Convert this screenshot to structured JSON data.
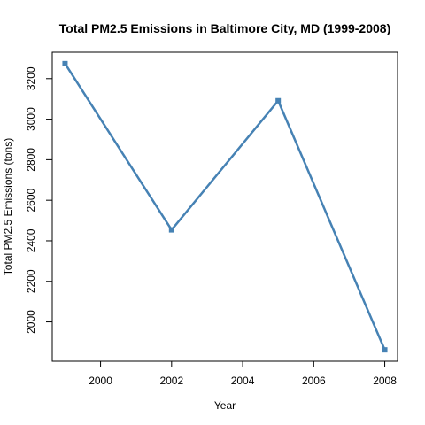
{
  "chart_data": {
    "type": "line",
    "title": "Total PM2.5 Emissions in Baltimore City, MD (1999-2008)",
    "xlabel": "Year",
    "ylabel": "Total PM2.5 Emissions (tons)",
    "x": [
      1999,
      2002,
      2005,
      2008
    ],
    "series": [
      {
        "values": [
          3274,
          2454,
          3091,
          1862
        ]
      }
    ],
    "xlim": [
      1998.64,
      2008.36
    ],
    "ylim": [
      1805.9,
      3330.1
    ],
    "xticks": [
      2000,
      2002,
      2004,
      2006,
      2008
    ],
    "xtick_labels": [
      "2000",
      "2002",
      "2004",
      "2006",
      "2008"
    ],
    "yticks": [
      2000,
      2200,
      2400,
      2600,
      2800,
      3000,
      3200
    ],
    "ytick_labels": [
      "2000",
      "2200",
      "2400",
      "2600",
      "2800",
      "3000",
      "3200"
    ],
    "grid": false,
    "line_color": "#4682B4"
  }
}
